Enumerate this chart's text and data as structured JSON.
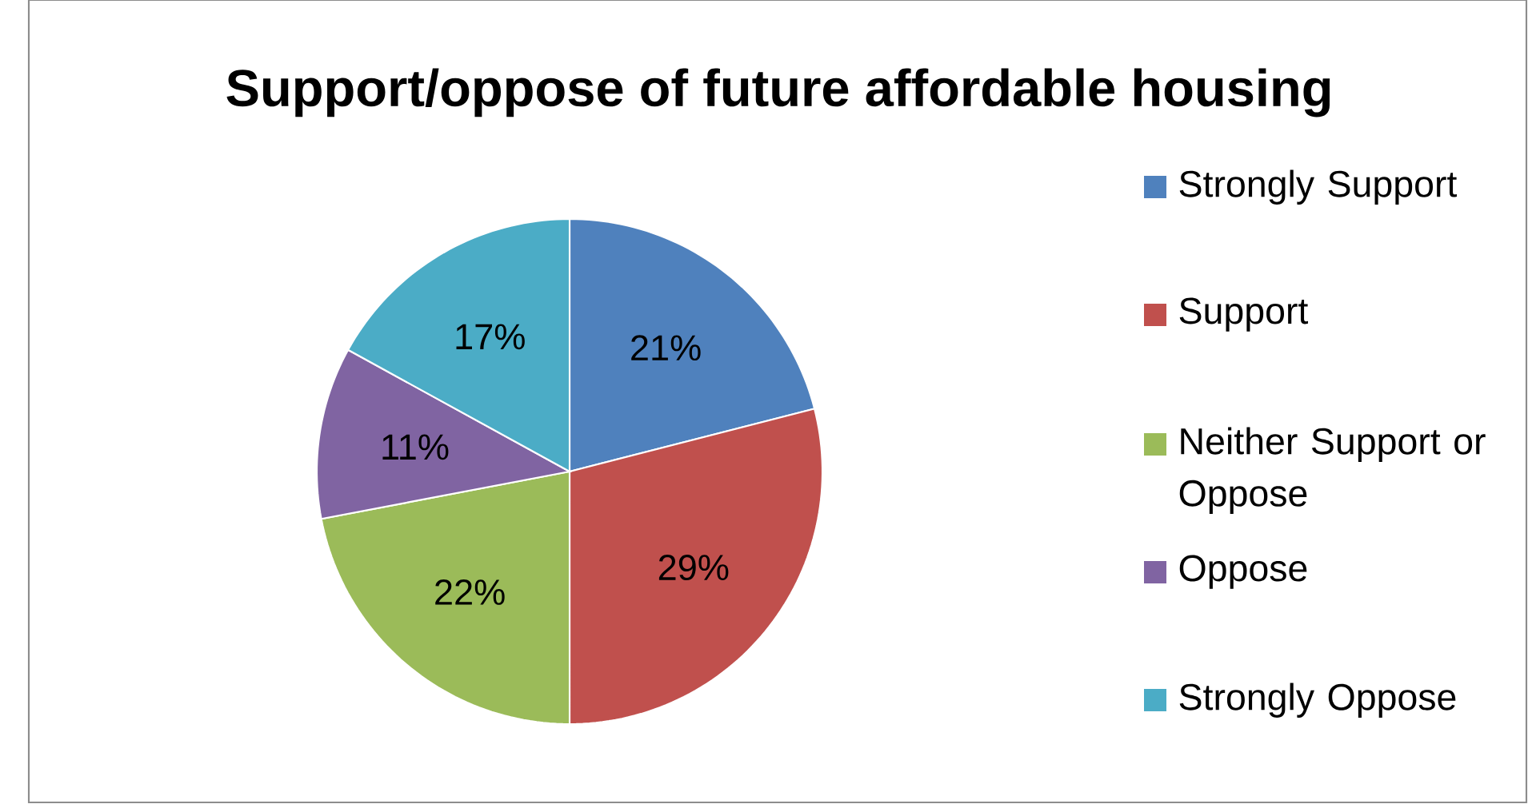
{
  "chart_data": {
    "type": "pie",
    "title": "Support/oppose of future affordable housing",
    "categories": [
      "Strongly Support",
      "Support",
      "Neither Support or Oppose",
      "Oppose",
      "Strongly Oppose"
    ],
    "values": [
      21,
      29,
      22,
      11,
      17
    ],
    "colors": [
      "#4f81bd",
      "#c0504d",
      "#9bbb59",
      "#8064a2",
      "#4bacc6"
    ],
    "value_labels": [
      "21%",
      "29%",
      "22%",
      "11%",
      "17%"
    ],
    "legend": "right"
  }
}
